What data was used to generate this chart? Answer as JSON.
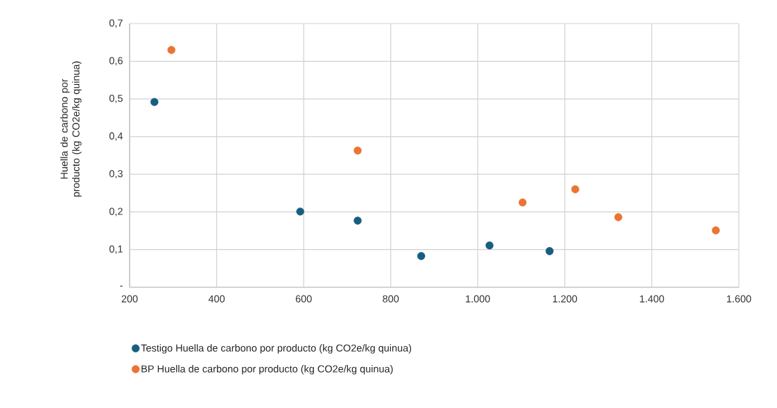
{
  "chart_data": {
    "type": "scatter",
    "ylabel": "Huella de carbono por producto (kg CO2e/kg quinua)",
    "xlim": [
      200,
      1600
    ],
    "xticks": [
      200,
      400,
      600,
      800,
      {
        "value": 1000,
        "label": "1.000"
      },
      {
        "value": 1200,
        "label": "1.200"
      },
      {
        "value": 1400,
        "label": "1.400"
      },
      {
        "value": 1600,
        "label": "1.600"
      }
    ],
    "ylim": [
      0,
      0.7
    ],
    "yticks": [
      {
        "value": 0,
        "label": "-"
      },
      {
        "value": 0.1,
        "label": "0,1"
      },
      {
        "value": 0.2,
        "label": "0,2"
      },
      {
        "value": 0.3,
        "label": "0,3"
      },
      {
        "value": 0.4,
        "label": "0,4"
      },
      {
        "value": 0.5,
        "label": "0,5"
      },
      {
        "value": 0.6,
        "label": "0,6"
      },
      {
        "value": 0.7,
        "label": "0,7"
      }
    ],
    "grid": true,
    "legend": "bottom",
    "marker": "circle",
    "series": [
      {
        "name": "Testigo  Huella de carbono por producto (kg CO2e/kg quinua)",
        "color": "#175e81",
        "x": [
          257,
          592,
          724,
          870,
          1027,
          1165
        ],
        "values": [
          0.492,
          0.201,
          0.177,
          0.083,
          0.111,
          0.096
        ]
      },
      {
        "name": "BP  Huella de carbono por producto (kg CO2e/kg quinua)",
        "color": "#ec7433",
        "x": [
          296,
          724,
          1103,
          1224,
          1323,
          1547
        ],
        "values": [
          0.63,
          0.363,
          0.225,
          0.26,
          0.186,
          0.151
        ]
      }
    ]
  }
}
